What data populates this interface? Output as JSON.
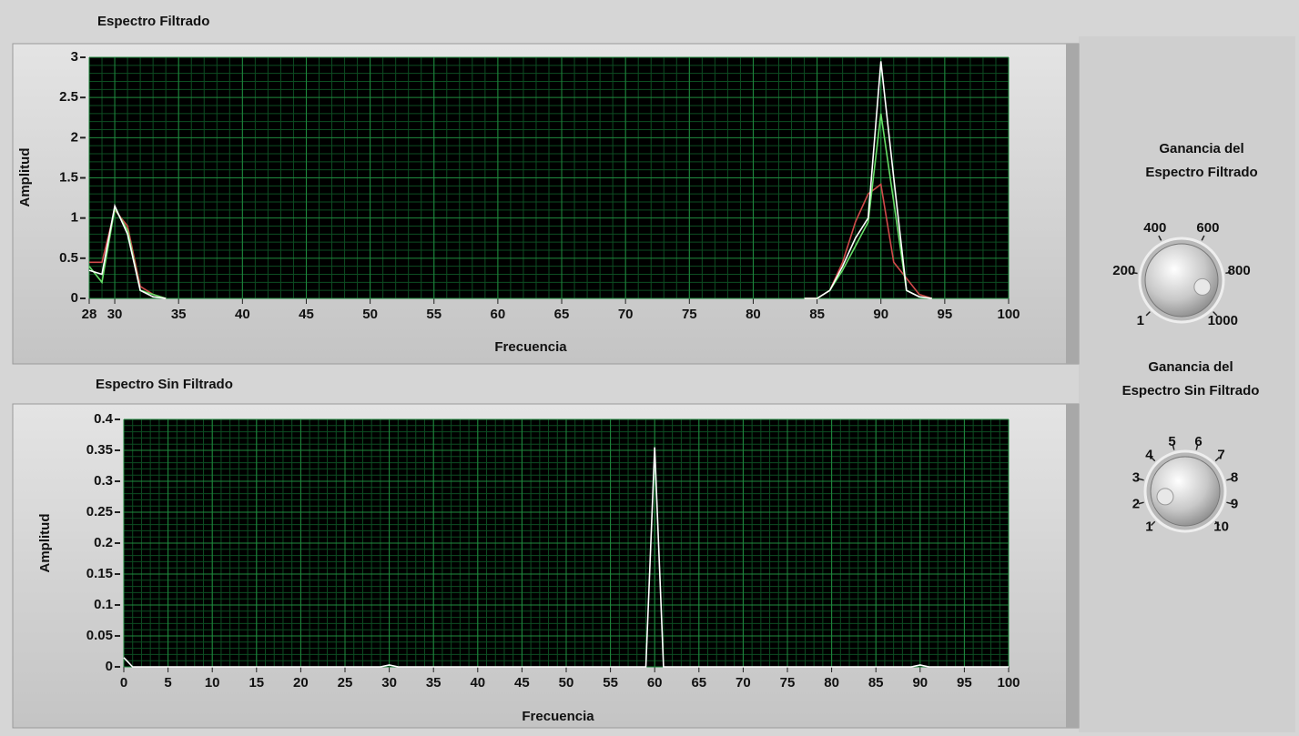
{
  "chart_data": [
    {
      "type": "line",
      "title": "Espectro Filtrado",
      "x_label": "Frecuencia",
      "y_label": "Amplitud",
      "xlim": [
        28,
        100
      ],
      "xticks": [
        28,
        30,
        35,
        40,
        45,
        50,
        55,
        60,
        65,
        70,
        75,
        80,
        85,
        90,
        95,
        100
      ],
      "ylim": [
        0,
        3
      ],
      "yticks": [
        0,
        0.5,
        1,
        1.5,
        2,
        2.5,
        3
      ],
      "grid": true,
      "x": [
        28,
        29,
        30,
        31,
        32,
        33,
        34,
        35,
        84,
        85,
        86,
        87,
        88,
        89,
        90,
        91,
        92,
        93,
        94
      ],
      "series": [
        {
          "color": "#d04a4a",
          "values": [
            0.45,
            0.45,
            1.1,
            0.9,
            0.15,
            0.05,
            0,
            null,
            0,
            0,
            0.1,
            0.45,
            0.95,
            1.3,
            1.42,
            0.45,
            0.25,
            0.05,
            0
          ]
        },
        {
          "color": "#66dd66",
          "values": [
            0.4,
            0.2,
            1.12,
            0.85,
            0.1,
            0.05,
            0,
            null,
            0,
            0,
            0.1,
            0.35,
            0.65,
            0.95,
            2.3,
            1.2,
            0.1,
            0.02,
            0
          ]
        },
        {
          "color": "#ffffff",
          "values": [
            0.35,
            0.3,
            1.15,
            0.8,
            0.1,
            0.02,
            0,
            null,
            0,
            0,
            0.1,
            0.4,
            0.75,
            1.0,
            2.95,
            1.5,
            0.1,
            0.02,
            0
          ]
        }
      ]
    },
    {
      "type": "line",
      "title": "Espectro Sin Filtrado",
      "x_label": "Frecuencia",
      "y_label": "Amplitud",
      "xlim": [
        0,
        100
      ],
      "xticks": [
        0,
        5,
        10,
        15,
        20,
        25,
        30,
        35,
        40,
        45,
        50,
        55,
        60,
        65,
        70,
        75,
        80,
        85,
        90,
        95,
        100
      ],
      "ylim": [
        0,
        0.4
      ],
      "yticks": [
        0,
        0.05,
        0.1,
        0.15,
        0.2,
        0.25,
        0.3,
        0.35,
        0.4
      ],
      "grid": true,
      "x": [
        0,
        1,
        29,
        30,
        31,
        59,
        60,
        61,
        89,
        90,
        91,
        100
      ],
      "series": [
        {
          "color": "#ffffff",
          "values": [
            0.015,
            0,
            0,
            0.003,
            0,
            0,
            0.355,
            0,
            0,
            0.003,
            0,
            0
          ]
        }
      ]
    }
  ],
  "controls": [
    {
      "label_lines": [
        "Ganancia del",
        "Espectro Filtrado"
      ],
      "ticks": [
        1,
        200,
        400,
        600,
        800,
        1000
      ],
      "range": [
        1,
        1000
      ],
      "value": 900
    },
    {
      "label_lines": [
        "Ganancia del",
        "Espectro Sin Filtrado"
      ],
      "ticks": [
        1,
        2,
        3,
        4,
        5,
        6,
        7,
        8,
        9,
        10
      ],
      "range": [
        1,
        10
      ],
      "value": 2
    }
  ]
}
